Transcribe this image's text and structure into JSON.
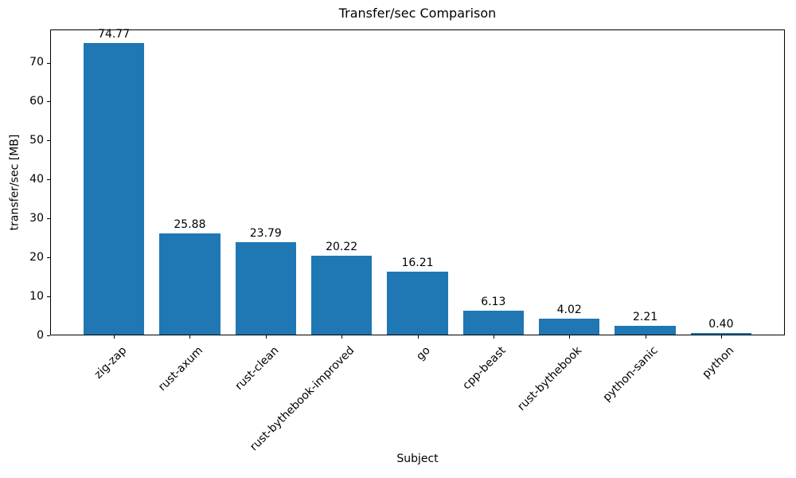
{
  "chart_data": {
    "type": "bar",
    "title": "Transfer/sec Comparison",
    "xlabel": "Subject",
    "ylabel": "transfer/sec [MB]",
    "categories": [
      "zig-zap",
      "rust-axum",
      "rust-clean",
      "rust-bythebook-improved",
      "go",
      "cpp-beast",
      "rust-bythebook",
      "python-sanic",
      "python"
    ],
    "values": [
      74.77,
      25.88,
      23.79,
      20.22,
      16.21,
      6.13,
      4.02,
      2.21,
      0.4
    ],
    "bar_labels": [
      "74.77",
      "25.88",
      "23.79",
      "20.22",
      "16.21",
      "6.13",
      "4.02",
      "2.21",
      "0.40"
    ],
    "yticks": [
      0,
      10,
      20,
      30,
      40,
      50,
      60,
      70
    ],
    "ylim": [
      0,
      78.5
    ],
    "bar_color": "#1f77b4",
    "grid": false,
    "legend_position": "none"
  }
}
